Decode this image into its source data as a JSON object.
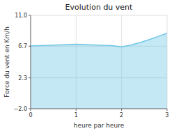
{
  "chart_data": {
    "type": "area",
    "title": "Evolution du vent",
    "x_label": "heure par heure",
    "y_label": "Force du vent en Km/h",
    "x": [
      0,
      0.2,
      0.4,
      0.6,
      0.8,
      1.0,
      1.2,
      1.4,
      1.6,
      1.8,
      2.0,
      2.2,
      2.4,
      2.6,
      2.8,
      3.0
    ],
    "values": [
      6.75,
      6.78,
      6.82,
      6.88,
      6.92,
      6.97,
      6.93,
      6.88,
      6.82,
      6.77,
      6.6,
      6.85,
      7.2,
      7.6,
      8.05,
      8.5
    ],
    "color": "#6ec6e6",
    "xlim": [
      0,
      3.0
    ],
    "ylim": [
      -2.0,
      11.0
    ],
    "xticks": [
      0,
      1,
      2,
      3
    ],
    "yticks": [
      {
        "value": -2.0,
        "label": "−2.0"
      },
      2.3,
      6.7,
      {
        "value": 11.0,
        "label": "11.0"
      }
    ],
    "grid": true
  }
}
